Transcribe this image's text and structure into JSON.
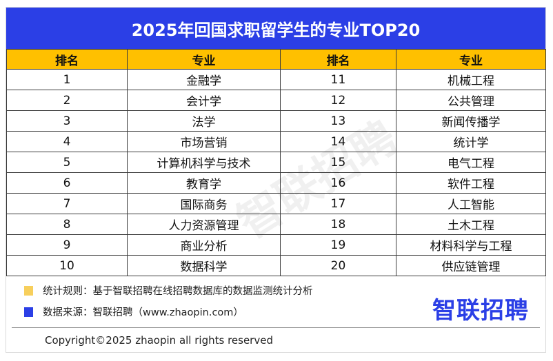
{
  "title": "2025年回国求职留学生的专业TOP20",
  "table": {
    "headers": [
      "排名",
      "专业",
      "排名",
      "专业"
    ],
    "rows": [
      [
        "1",
        "金融学",
        "11",
        "机械工程"
      ],
      [
        "2",
        "会计学",
        "12",
        "公共管理"
      ],
      [
        "3",
        "法学",
        "13",
        "新闻传播学"
      ],
      [
        "4",
        "市场营销",
        "14",
        "统计学"
      ],
      [
        "5",
        "计算机科学与技术",
        "15",
        "电气工程"
      ],
      [
        "6",
        "教育学",
        "16",
        "软件工程"
      ],
      [
        "7",
        "国际商务",
        "17",
        "人工智能"
      ],
      [
        "8",
        "人力资源管理",
        "18",
        "土木工程"
      ],
      [
        "9",
        "商业分析",
        "19",
        "材料科学与工程"
      ],
      [
        "10",
        "数据科学",
        "20",
        "供应链管理"
      ]
    ]
  },
  "watermark": "智联招聘",
  "footer": {
    "rule": "统计规则：基于智联招聘在线招聘数据库的数据监测统计分析",
    "source": "数据来源：智联招聘（www.zhaopin.com）",
    "copyright": "Copyright©2025 zhaopin all rights reserved",
    "logo": "智联招聘"
  },
  "colors": {
    "title_bg": "#2b3fe6",
    "header_bg": "#ffc000",
    "rule_swatch": "#f7cf5c",
    "source_swatch": "#2b3fe6",
    "logo": "#2b3fe6"
  }
}
